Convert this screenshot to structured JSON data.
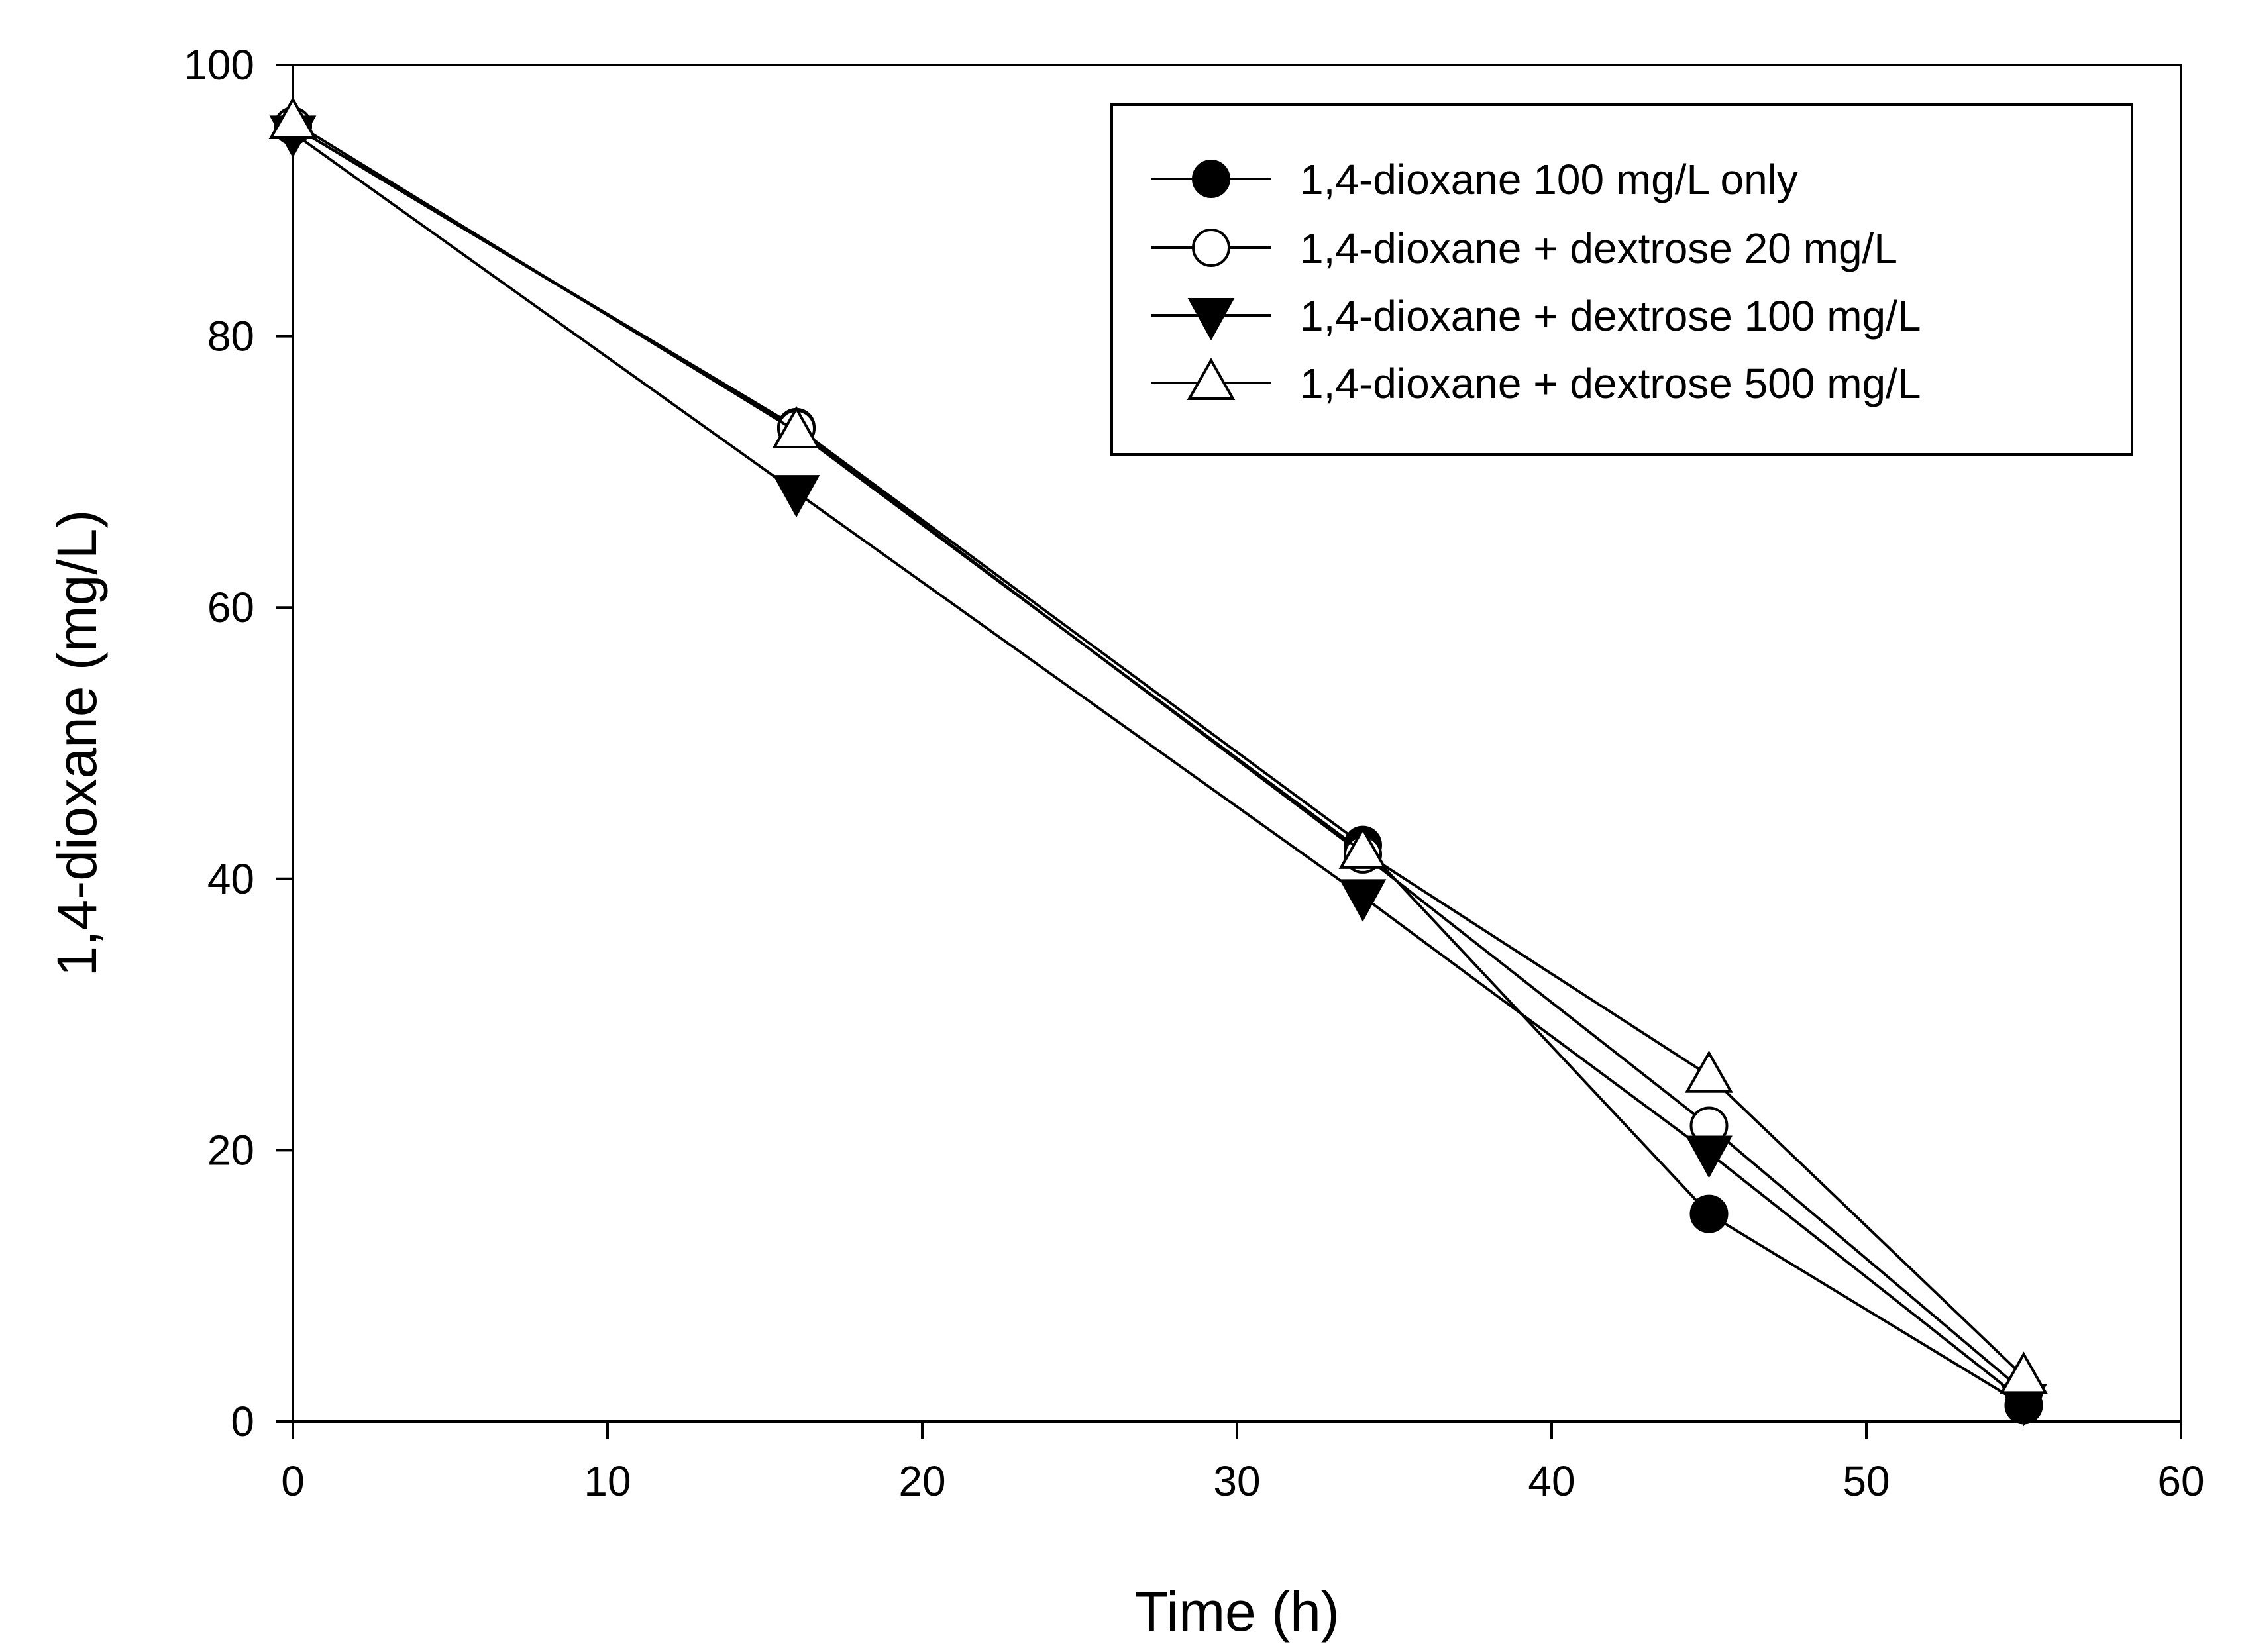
{
  "chart_data": {
    "type": "line",
    "title": "",
    "xlabel": "Time (h)",
    "ylabel": "1,4-dioxane (mg/L)",
    "xlim": [
      0,
      60
    ],
    "ylim": [
      0,
      100
    ],
    "xticks": [
      0,
      10,
      20,
      30,
      40,
      50,
      60
    ],
    "yticks": [
      0,
      20,
      40,
      60,
      80,
      100
    ],
    "grid": false,
    "legend_position": "top-right",
    "x": [
      0,
      16,
      34,
      45,
      55
    ],
    "series": [
      {
        "name": "1,4-dioxane 100 mg/L only",
        "marker": "filled-circle",
        "values": [
          95.5,
          73.3,
          42.5,
          15.3,
          1.2
        ]
      },
      {
        "name": "1,4-dioxane + dextrose 20 mg/L",
        "marker": "open-circle",
        "values": [
          95.5,
          73.2,
          41.8,
          21.8,
          2.2
        ]
      },
      {
        "name": "1,4-dioxane + dextrose 100 mg/L",
        "marker": "filled-triangle-down",
        "values": [
          95.0,
          68.5,
          38.7,
          19.8,
          1.5
        ]
      },
      {
        "name": "1,4-dioxane + dextrose 500 mg/L",
        "marker": "open-triangle-up",
        "values": [
          95.8,
          73.0,
          42.0,
          25.5,
          3.3
        ]
      }
    ]
  }
}
